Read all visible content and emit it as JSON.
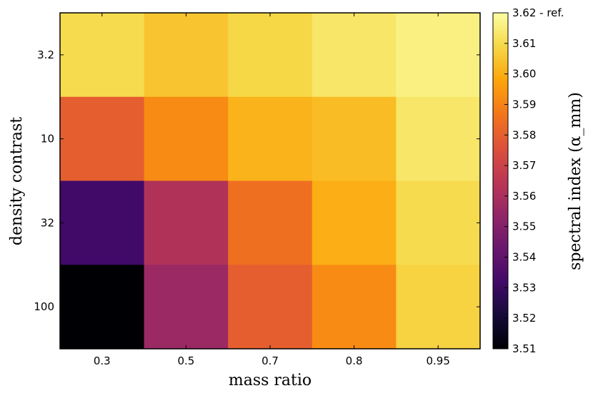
{
  "chart_data": {
    "type": "heatmap",
    "xlabel": "mass ratio",
    "ylabel": "density contrast",
    "x_categories": [
      "0.3",
      "0.5",
      "0.7",
      "0.8",
      "0.95"
    ],
    "y_categories": [
      "3.2",
      "10",
      "32",
      "100"
    ],
    "values": [
      [
        3.61,
        3.605,
        3.609,
        3.613,
        3.616
      ],
      [
        3.58,
        3.592,
        3.601,
        3.603,
        3.613
      ],
      [
        3.532,
        3.562,
        3.585,
        3.6,
        3.61
      ],
      [
        3.51,
        3.556,
        3.58,
        3.592,
        3.608
      ]
    ],
    "colorbar": {
      "label": "spectral index (α_mm)",
      "range": [
        3.51,
        3.62
      ],
      "ticks": [
        "3.51",
        "3.52",
        "3.53",
        "3.54",
        "3.55",
        "3.56",
        "3.57",
        "3.58",
        "3.59",
        "3.60",
        "3.61",
        "3.62 - ref."
      ],
      "colormap": "inferno"
    }
  }
}
